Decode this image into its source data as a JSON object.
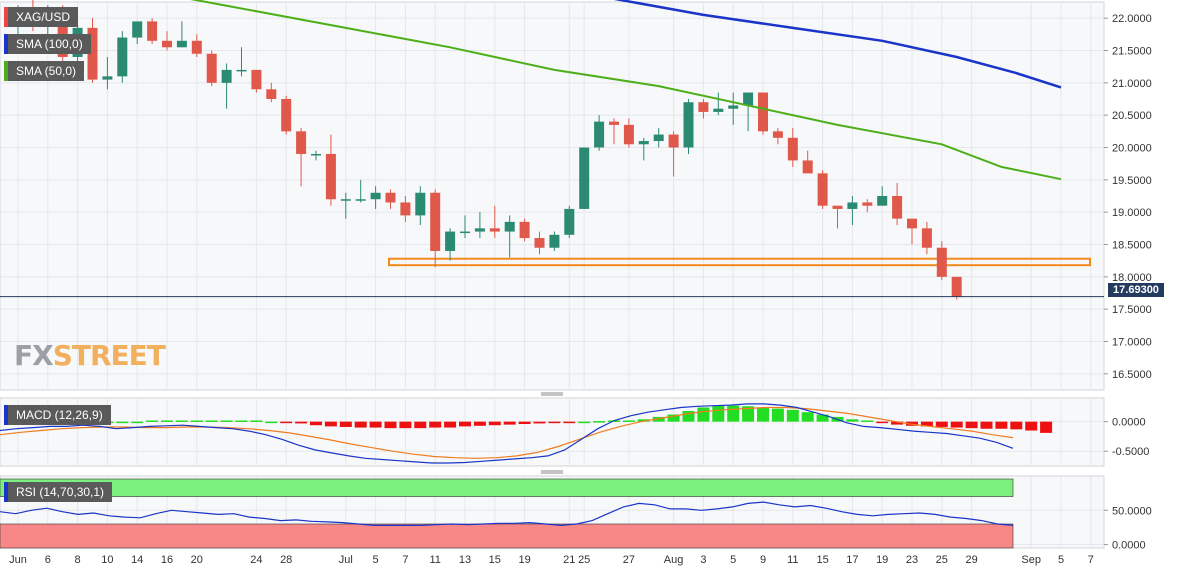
{
  "chart_data": [
    {
      "type": "candlestick",
      "symbol": "XAG/USD",
      "y_ticks": [
        "22.0000",
        "21.5000",
        "21.0000",
        "20.5000",
        "20.0000",
        "19.5000",
        "19.0000",
        "18.5000",
        "18.0000",
        "17.5000",
        "17.0000",
        "16.5000"
      ],
      "y_tick_values": [
        22.0,
        21.5,
        21.0,
        20.5,
        20.0,
        19.5,
        19.0,
        18.5,
        18.0,
        17.5,
        17.0,
        16.5
      ],
      "ylim": [
        16.25,
        22.25
      ],
      "last_price": "17.69300",
      "last_price_value": 17.693,
      "support_zone": [
        18.18,
        18.28
      ],
      "candles": [
        [
          21.95,
          22.2,
          21.7,
          22.1
        ],
        [
          22.1,
          22.3,
          21.8,
          21.9
        ],
        [
          21.9,
          22.2,
          21.75,
          22.1
        ],
        [
          22.1,
          22.2,
          21.3,
          21.4
        ],
        [
          21.4,
          21.9,
          21.2,
          21.85
        ],
        [
          21.85,
          22.0,
          21.0,
          21.05
        ],
        [
          21.05,
          21.4,
          20.9,
          21.1
        ],
        [
          21.1,
          21.8,
          21.0,
          21.7
        ],
        [
          21.7,
          21.95,
          21.6,
          21.95
        ],
        [
          21.95,
          22.0,
          21.6,
          21.65
        ],
        [
          21.65,
          21.8,
          21.5,
          21.55
        ],
        [
          21.55,
          21.95,
          21.55,
          21.65
        ],
        [
          21.65,
          21.75,
          21.4,
          21.45
        ],
        [
          21.45,
          21.5,
          20.95,
          21.0
        ],
        [
          21.0,
          21.3,
          20.6,
          21.2
        ],
        [
          21.2,
          21.55,
          21.1,
          21.2
        ],
        [
          21.2,
          21.2,
          20.85,
          20.9
        ],
        [
          20.9,
          21.0,
          20.7,
          20.75
        ],
        [
          20.75,
          20.8,
          20.2,
          20.25
        ],
        [
          20.25,
          20.3,
          19.4,
          19.9
        ],
        [
          19.9,
          19.95,
          19.8,
          19.9
        ],
        [
          19.9,
          20.2,
          19.1,
          19.2
        ],
        [
          19.2,
          19.3,
          18.9,
          19.2
        ],
        [
          19.2,
          19.5,
          19.15,
          19.2
        ],
        [
          19.2,
          19.4,
          19.05,
          19.3
        ],
        [
          19.3,
          19.35,
          19.05,
          19.15
        ],
        [
          19.15,
          19.25,
          18.85,
          18.95
        ],
        [
          18.95,
          19.4,
          18.8,
          19.3
        ],
        [
          19.3,
          19.35,
          18.15,
          18.4
        ],
        [
          18.4,
          18.75,
          18.25,
          18.7
        ],
        [
          18.7,
          18.95,
          18.6,
          18.7
        ],
        [
          18.7,
          19.0,
          18.6,
          18.75
        ],
        [
          18.75,
          19.1,
          18.6,
          18.7
        ],
        [
          18.7,
          18.95,
          18.3,
          18.85
        ],
        [
          18.85,
          18.9,
          18.55,
          18.6
        ],
        [
          18.6,
          18.7,
          18.35,
          18.45
        ],
        [
          18.45,
          18.7,
          18.4,
          18.65
        ],
        [
          18.65,
          19.1,
          18.6,
          19.05
        ],
        [
          19.05,
          20.0,
          19.05,
          20.0
        ],
        [
          20.0,
          20.5,
          19.95,
          20.4
        ],
        [
          20.4,
          20.45,
          20.05,
          20.35
        ],
        [
          20.35,
          20.45,
          20.0,
          20.05
        ],
        [
          20.05,
          20.15,
          19.8,
          20.1
        ],
        [
          20.1,
          20.3,
          20.0,
          20.2
        ],
        [
          20.2,
          20.25,
          19.55,
          20.0
        ],
        [
          20.0,
          20.75,
          19.9,
          20.7
        ],
        [
          20.7,
          20.75,
          20.45,
          20.55
        ],
        [
          20.55,
          20.85,
          20.5,
          20.6
        ],
        [
          20.6,
          20.85,
          20.35,
          20.65
        ],
        [
          20.65,
          20.85,
          20.25,
          20.85
        ],
        [
          20.85,
          20.85,
          20.2,
          20.25
        ],
        [
          20.25,
          20.3,
          20.05,
          20.15
        ],
        [
          20.15,
          20.3,
          19.7,
          19.8
        ],
        [
          19.8,
          19.95,
          19.6,
          19.6
        ],
        [
          19.6,
          19.65,
          19.05,
          19.1
        ],
        [
          19.1,
          19.1,
          18.75,
          19.05
        ],
        [
          19.05,
          19.25,
          18.8,
          19.15
        ],
        [
          19.15,
          19.2,
          19.0,
          19.1
        ],
        [
          19.1,
          19.4,
          19.1,
          19.25
        ],
        [
          19.25,
          19.45,
          18.8,
          18.9
        ],
        [
          18.9,
          18.9,
          18.5,
          18.75
        ],
        [
          18.75,
          18.85,
          18.35,
          18.45
        ],
        [
          18.45,
          18.55,
          17.95,
          18.0
        ],
        [
          18.0,
          18.0,
          17.65,
          17.693
        ]
      ],
      "sma_50": {
        "label": "SMA (50,0)",
        "color": "#4caf1a",
        "points": [
          [
            8,
            22.45
          ],
          [
            15,
            22.15
          ],
          [
            22,
            21.85
          ],
          [
            29,
            21.55
          ],
          [
            36,
            21.2
          ],
          [
            43,
            20.95
          ],
          [
            48,
            20.7
          ],
          [
            55,
            20.35
          ],
          [
            62,
            20.05
          ],
          [
            66,
            19.7
          ],
          [
            70,
            19.51
          ]
        ]
      },
      "sma_100": {
        "label": "SMA (100,0)",
        "color": "#1a35c8",
        "points": [
          [
            40,
            22.3
          ],
          [
            46,
            22.05
          ],
          [
            52,
            21.85
          ],
          [
            58,
            21.65
          ],
          [
            63,
            21.4
          ],
          [
            67,
            21.15
          ],
          [
            70,
            20.93
          ]
        ]
      },
      "x_ticks": [
        {
          "label": "Jun",
          "idx": 0
        },
        {
          "label": "6",
          "idx": 2
        },
        {
          "label": "8",
          "idx": 4
        },
        {
          "label": "10",
          "idx": 6
        },
        {
          "label": "14",
          "idx": 8
        },
        {
          "label": "16",
          "idx": 10
        },
        {
          "label": "20",
          "idx": 12
        },
        {
          "label": "24",
          "idx": 16
        },
        {
          "label": "28",
          "idx": 18
        },
        {
          "label": "Jul",
          "idx": 22
        },
        {
          "label": "5",
          "idx": 24
        },
        {
          "label": "7",
          "idx": 26
        },
        {
          "label": "11",
          "idx": 28
        },
        {
          "label": "13",
          "idx": 30
        },
        {
          "label": "15",
          "idx": 32
        },
        {
          "label": "19",
          "idx": 34
        },
        {
          "label": "21",
          "idx": 37
        },
        {
          "label": "25",
          "idx": 38
        },
        {
          "label": "27",
          "idx": 41
        },
        {
          "label": "Aug",
          "idx": 44
        },
        {
          "label": "3",
          "idx": 46
        },
        {
          "label": "5",
          "idx": 48
        },
        {
          "label": "9",
          "idx": 50
        },
        {
          "label": "11",
          "idx": 52
        },
        {
          "label": "15",
          "idx": 54
        },
        {
          "label": "17",
          "idx": 56
        },
        {
          "label": "19",
          "idx": 58
        },
        {
          "label": "23",
          "idx": 60
        },
        {
          "label": "25",
          "idx": 62
        },
        {
          "label": "29",
          "idx": 64
        },
        {
          "label": "Sep",
          "idx": 68
        },
        {
          "label": "5",
          "idx": 70
        },
        {
          "label": "7",
          "idx": 72
        }
      ]
    },
    {
      "type": "histogram",
      "label": "MACD (12,26,9)",
      "y_ticks": [
        "0.0000",
        "-0.5000"
      ],
      "y_tick_values": [
        0.0,
        -0.5
      ],
      "ylim": [
        -0.75,
        0.4
      ],
      "histogram": [
        0.0,
        0.0,
        0.0,
        0.0,
        0.0,
        0.0,
        0.0,
        0.0,
        0.0,
        0.02,
        0.02,
        0.02,
        0.02,
        0.02,
        0.02,
        0.02,
        0.02,
        0.0,
        -0.02,
        -0.03,
        -0.06,
        -0.08,
        -0.09,
        -0.1,
        -0.1,
        -0.11,
        -0.11,
        -0.11,
        -0.1,
        -0.1,
        -0.08,
        -0.07,
        -0.06,
        -0.05,
        -0.04,
        -0.03,
        -0.02,
        -0.01,
        0.0,
        0.01,
        0.02,
        0.02,
        0.04,
        0.08,
        0.12,
        0.18,
        0.24,
        0.27,
        0.27,
        0.26,
        0.24,
        0.22,
        0.2,
        0.16,
        0.12,
        0.08,
        0.04,
        0.02,
        -0.02,
        -0.05,
        -0.07,
        -0.08,
        -0.09,
        -0.1,
        -0.11,
        -0.12,
        -0.12,
        -0.13,
        -0.15,
        -0.19
      ],
      "macd_line": [
        -0.15,
        -0.12,
        -0.1,
        -0.08,
        -0.08,
        -0.06,
        -0.08,
        -0.12,
        -0.1,
        -0.08,
        -0.07,
        -0.06,
        -0.08,
        -0.1,
        -0.12,
        -0.16,
        -0.22,
        -0.3,
        -0.4,
        -0.48,
        -0.53,
        -0.58,
        -0.62,
        -0.64,
        -0.66,
        -0.68,
        -0.7,
        -0.7,
        -0.69,
        -0.67,
        -0.65,
        -0.63,
        -0.61,
        -0.58,
        -0.48,
        -0.3,
        -0.12,
        0.02,
        0.1,
        0.16,
        0.2,
        0.24,
        0.26,
        0.27,
        0.28,
        0.3,
        0.3,
        0.28,
        0.24,
        0.16,
        0.08,
        -0.02,
        -0.08,
        -0.1,
        -0.13,
        -0.16,
        -0.18,
        -0.2,
        -0.24,
        -0.28,
        -0.35,
        -0.45
      ],
      "signal_line": [
        -0.22,
        -0.18,
        -0.15,
        -0.12,
        -0.1,
        -0.09,
        -0.09,
        -0.1,
        -0.1,
        -0.09,
        -0.09,
        -0.1,
        -0.12,
        -0.15,
        -0.19,
        -0.25,
        -0.31,
        -0.38,
        -0.44,
        -0.5,
        -0.55,
        -0.59,
        -0.61,
        -0.62,
        -0.61,
        -0.58,
        -0.52,
        -0.42,
        -0.3,
        -0.18,
        -0.08,
        0.0,
        0.06,
        0.12,
        0.17,
        0.2,
        0.22,
        0.24,
        0.24,
        0.22,
        0.18,
        0.14,
        0.08,
        0.02,
        -0.04,
        -0.08,
        -0.12,
        -0.16,
        -0.22,
        -0.27
      ],
      "macd_color": "#1a35c8",
      "signal_color": "#f07c1f",
      "up_color": "#22dd22",
      "down_color": "#ee1111"
    },
    {
      "type": "line",
      "label": "RSI (14,70,30,1)",
      "y_ticks": [
        "50.0000",
        "0.0000"
      ],
      "y_tick_values": [
        50,
        0
      ],
      "ylim": [
        -5,
        100
      ],
      "overbought": 70,
      "oversold": 30,
      "rsi": [
        48,
        45,
        50,
        53,
        48,
        44,
        46,
        42,
        40,
        39,
        45,
        50,
        48,
        46,
        44,
        45,
        40,
        38,
        35,
        36,
        34,
        33,
        32,
        30,
        28,
        28,
        28,
        28,
        29,
        30,
        29,
        30,
        31,
        31,
        32,
        30,
        28,
        30,
        35,
        45,
        55,
        60,
        58,
        52,
        52,
        50,
        52,
        55,
        60,
        62,
        58,
        55,
        57,
        53,
        48,
        44,
        42,
        44,
        45,
        46,
        44,
        40,
        38,
        35,
        30,
        28
      ],
      "color": "#1a35c8",
      "ob_color": "#7cf07c",
      "os_color": "#f88888"
    }
  ],
  "ui": {
    "brand_fx": "FX",
    "brand_street": "STREET",
    "legend_price_color": "#ee4444",
    "legend_sma100_color": "#1a35c8",
    "legend_sma50_color": "#4caf1a"
  }
}
